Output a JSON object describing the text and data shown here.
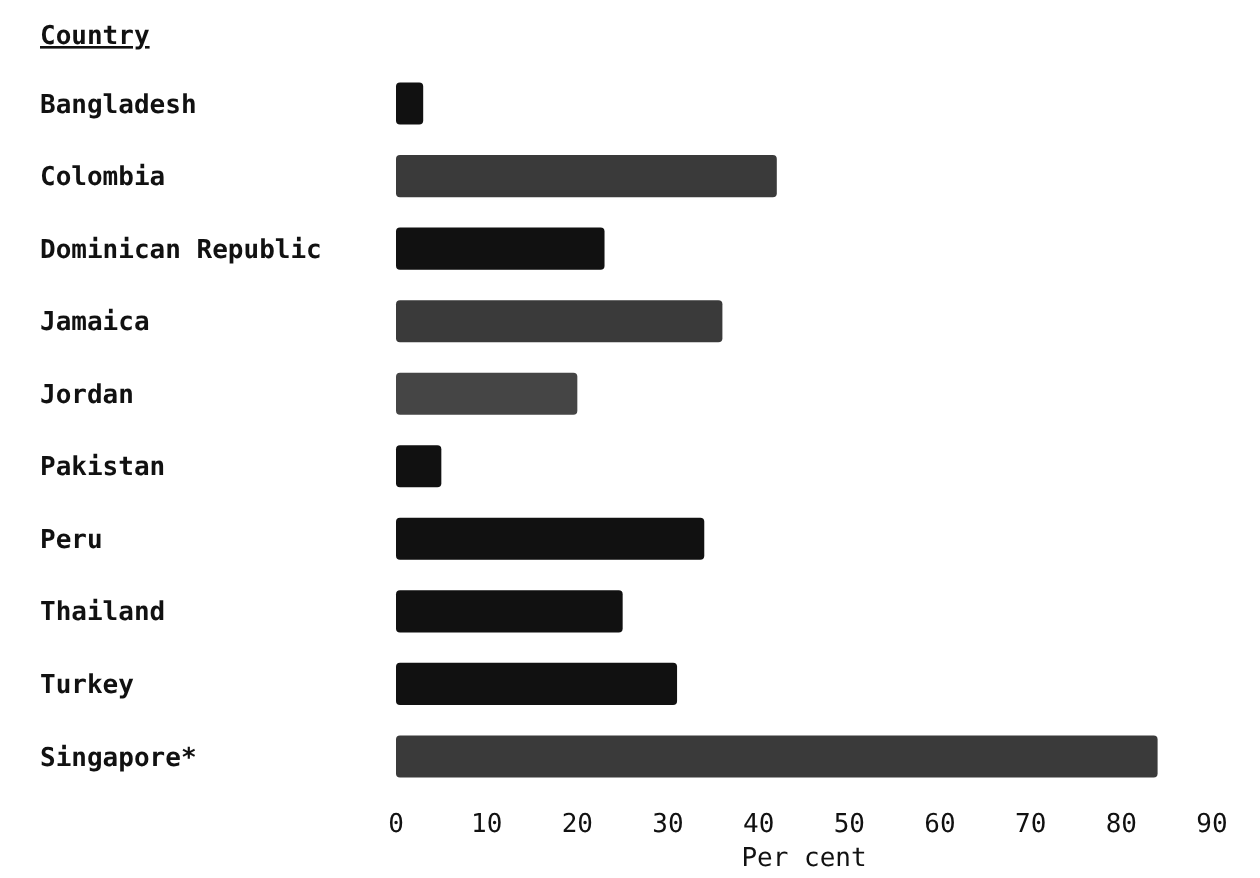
{
  "chart_data": {
    "type": "bar",
    "orientation": "horizontal",
    "ylabel": "Country",
    "xlabel": "Per cent",
    "categories": [
      "Bangladesh",
      "Colombia",
      "Dominican Republic",
      "Jamaica",
      "Jordan",
      "Pakistan",
      "Peru",
      "Thailand",
      "Turkey",
      "Singapore*"
    ],
    "values": [
      3,
      42,
      23,
      36,
      20,
      5,
      34,
      25,
      31,
      84
    ],
    "colors": [
      "#111111",
      "#3a3a3a",
      "#111111",
      "#3a3a3a",
      "#454545",
      "#111111",
      "#111111",
      "#111111",
      "#111111",
      "#3a3a3a"
    ],
    "xlim": [
      0,
      90
    ],
    "xticks": [
      0,
      10,
      20,
      30,
      40,
      50,
      60,
      70,
      80,
      90
    ],
    "grid": false
  }
}
